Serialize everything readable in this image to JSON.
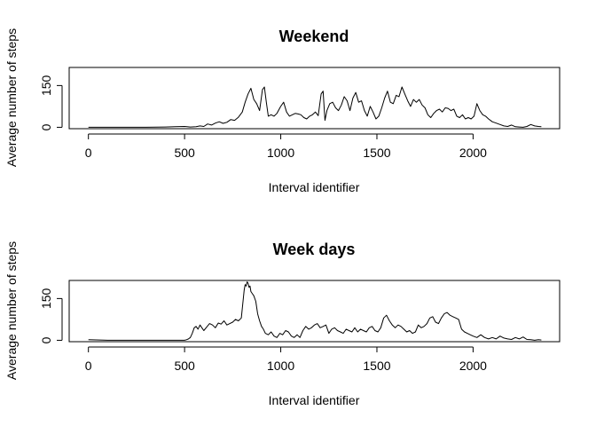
{
  "chart_data": [
    {
      "type": "line",
      "title": "Weekend",
      "xlabel": "Interval identifier",
      "ylabel": "Average number of steps",
      "xlim": [
        -100,
        2450
      ],
      "ylim": [
        -5,
        215
      ],
      "xticks": [
        0,
        500,
        1000,
        1500,
        2000
      ],
      "yticks": [
        0,
        150
      ],
      "grid": false,
      "series": [
        {
          "x": [
            0,
            100,
            200,
            300,
            400,
            450,
            500,
            530,
            560,
            580,
            600,
            620,
            640,
            660,
            680,
            700,
            720,
            740,
            760,
            780,
            800,
            815,
            830,
            845,
            860,
            875,
            890,
            905,
            915,
            925,
            935,
            950,
            965,
            980,
            1000,
            1015,
            1030,
            1045,
            1060,
            1075,
            1090,
            1105,
            1120,
            1135,
            1150,
            1165,
            1180,
            1195,
            1210,
            1220,
            1230,
            1240,
            1255,
            1270,
            1285,
            1300,
            1315,
            1330,
            1345,
            1360,
            1375,
            1390,
            1405,
            1420,
            1435,
            1450,
            1465,
            1480,
            1495,
            1510,
            1525,
            1540,
            1555,
            1570,
            1585,
            1600,
            1615,
            1630,
            1645,
            1660,
            1675,
            1690,
            1705,
            1720,
            1735,
            1750,
            1765,
            1780,
            1795,
            1810,
            1825,
            1840,
            1855,
            1870,
            1885,
            1900,
            1915,
            1930,
            1945,
            1960,
            1975,
            1990,
            2005,
            2020,
            2035,
            2050,
            2065,
            2080,
            2100,
            2120,
            2140,
            2160,
            2180,
            2200,
            2220,
            2240,
            2260,
            2280,
            2300,
            2320,
            2340,
            2355
          ],
          "y": [
            0,
            0,
            0,
            0,
            1,
            2,
            3,
            1,
            2,
            5,
            3,
            12,
            8,
            15,
            20,
            14,
            18,
            28,
            25,
            36,
            55,
            90,
            120,
            140,
            100,
            85,
            60,
            135,
            145,
            90,
            40,
            45,
            40,
            50,
            75,
            90,
            55,
            40,
            45,
            50,
            48,
            45,
            35,
            30,
            40,
            45,
            55,
            42,
            120,
            130,
            25,
            60,
            85,
            90,
            70,
            60,
            80,
            110,
            95,
            60,
            105,
            125,
            90,
            95,
            60,
            40,
            75,
            55,
            30,
            40,
            70,
            105,
            130,
            90,
            85,
            115,
            110,
            145,
            120,
            95,
            75,
            100,
            90,
            100,
            80,
            70,
            45,
            35,
            50,
            60,
            65,
            55,
            70,
            68,
            60,
            65,
            40,
            35,
            45,
            30,
            35,
            30,
            40,
            85,
            60,
            45,
            40,
            30,
            20,
            15,
            10,
            5,
            3,
            8,
            2,
            1,
            0,
            3,
            10,
            5,
            3,
            2
          ]
        }
      ]
    },
    {
      "type": "line",
      "title": "Week days",
      "xlabel": "Interval identifier",
      "ylabel": "Average number of steps",
      "xlim": [
        -100,
        2450
      ],
      "ylim": [
        -5,
        215
      ],
      "xticks": [
        0,
        500,
        1000,
        1500,
        2000
      ],
      "yticks": [
        0,
        150
      ],
      "grid": false,
      "series": [
        {
          "x": [
            0,
            100,
            200,
            300,
            400,
            450,
            500,
            510,
            520,
            530,
            540,
            550,
            560,
            570,
            580,
            590,
            600,
            615,
            630,
            645,
            660,
            675,
            690,
            705,
            720,
            735,
            750,
            765,
            780,
            795,
            810,
            815,
            820,
            825,
            830,
            835,
            840,
            845,
            850,
            860,
            870,
            880,
            890,
            900,
            910,
            920,
            935,
            950,
            965,
            980,
            995,
            1010,
            1025,
            1040,
            1055,
            1070,
            1085,
            1100,
            1115,
            1130,
            1145,
            1160,
            1175,
            1190,
            1205,
            1220,
            1235,
            1250,
            1265,
            1280,
            1295,
            1310,
            1325,
            1340,
            1355,
            1370,
            1385,
            1400,
            1415,
            1430,
            1445,
            1460,
            1475,
            1490,
            1505,
            1520,
            1535,
            1550,
            1565,
            1580,
            1595,
            1610,
            1625,
            1640,
            1655,
            1670,
            1685,
            1700,
            1715,
            1730,
            1745,
            1760,
            1775,
            1790,
            1805,
            1820,
            1835,
            1850,
            1865,
            1880,
            1895,
            1910,
            1925,
            1940,
            1955,
            1970,
            1985,
            2000,
            2020,
            2040,
            2060,
            2080,
            2100,
            2120,
            2140,
            2160,
            2180,
            2200,
            2220,
            2240,
            2260,
            2280,
            2300,
            2320,
            2340,
            2355
          ],
          "y": [
            2,
            0,
            0,
            0,
            0,
            0,
            0,
            2,
            5,
            10,
            25,
            45,
            50,
            40,
            55,
            45,
            35,
            48,
            60,
            55,
            45,
            62,
            58,
            70,
            55,
            60,
            65,
            75,
            70,
            80,
            180,
            200,
            195,
            210,
            205,
            190,
            195,
            175,
            170,
            160,
            140,
            95,
            70,
            50,
            40,
            25,
            20,
            30,
            15,
            10,
            25,
            20,
            35,
            30,
            15,
            10,
            20,
            10,
            35,
            50,
            40,
            45,
            55,
            60,
            45,
            50,
            55,
            25,
            40,
            45,
            35,
            30,
            25,
            40,
            35,
            30,
            45,
            30,
            40,
            35,
            30,
            45,
            50,
            35,
            30,
            45,
            80,
            90,
            70,
            55,
            45,
            55,
            50,
            40,
            30,
            35,
            25,
            30,
            55,
            45,
            50,
            60,
            80,
            85,
            65,
            60,
            80,
            95,
            100,
            90,
            85,
            80,
            75,
            40,
            30,
            25,
            20,
            15,
            10,
            20,
            10,
            5,
            10,
            5,
            15,
            8,
            5,
            3,
            10,
            5,
            12,
            3,
            2,
            0,
            2,
            1
          ]
        }
      ]
    }
  ]
}
